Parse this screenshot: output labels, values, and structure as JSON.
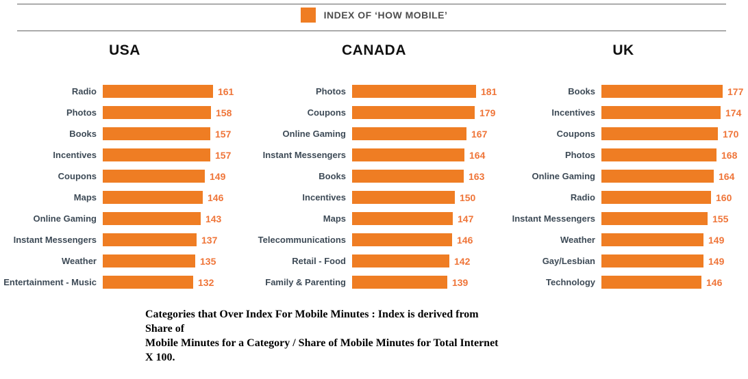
{
  "legend": {
    "label": "INDEX OF ‘HOW MOBILE’",
    "swatch_color": "#EF7D23"
  },
  "colors": {
    "bar": "#EF7D23",
    "value_label": "#EF7539",
    "category_label": "#3D4A56",
    "rule": "#ABABAB",
    "title": "#111111"
  },
  "caption": {
    "line1": "Categories that Over Index For Mobile Minutes : Index is derived from Share of",
    "line2": "Mobile Minutes for a Category / Share of Mobile Minutes for Total Internet X 100."
  },
  "chart_data": [
    {
      "type": "bar",
      "orientation": "horizontal",
      "title": "USA",
      "categories": [
        "Radio",
        "Photos",
        "Books",
        "Incentives",
        "Coupons",
        "Maps",
        "Online Gaming",
        "Instant Messengers",
        "Weather",
        "Entertainment - Music"
      ],
      "values": [
        161,
        158,
        157,
        157,
        149,
        146,
        143,
        137,
        135,
        132
      ],
      "xlabel": "",
      "ylabel": "",
      "xlim": [
        0,
        185
      ],
      "grid": false,
      "value_labels": "end-of-bar"
    },
    {
      "type": "bar",
      "orientation": "horizontal",
      "title": "CANADA",
      "categories": [
        "Photos",
        "Coupons",
        "Online Gaming",
        "Instant Messengers",
        "Books",
        "Incentives",
        "Maps",
        "Telecommunications",
        "Retail - Food",
        "Family & Parenting"
      ],
      "values": [
        181,
        179,
        167,
        164,
        163,
        150,
        147,
        146,
        142,
        139
      ],
      "xlabel": "",
      "ylabel": "",
      "xlim": [
        0,
        185
      ],
      "grid": false,
      "value_labels": "end-of-bar"
    },
    {
      "type": "bar",
      "orientation": "horizontal",
      "title": "UK",
      "categories": [
        "Books",
        "Incentives",
        "Coupons",
        "Photos",
        "Online Gaming",
        "Radio",
        "Instant Messengers",
        "Weather",
        "Gay/Lesbian",
        "Technology"
      ],
      "values": [
        177,
        174,
        170,
        168,
        164,
        160,
        155,
        149,
        149,
        146
      ],
      "xlabel": "",
      "ylabel": "",
      "xlim": [
        0,
        185
      ],
      "grid": false,
      "value_labels": "end-of-bar"
    }
  ]
}
